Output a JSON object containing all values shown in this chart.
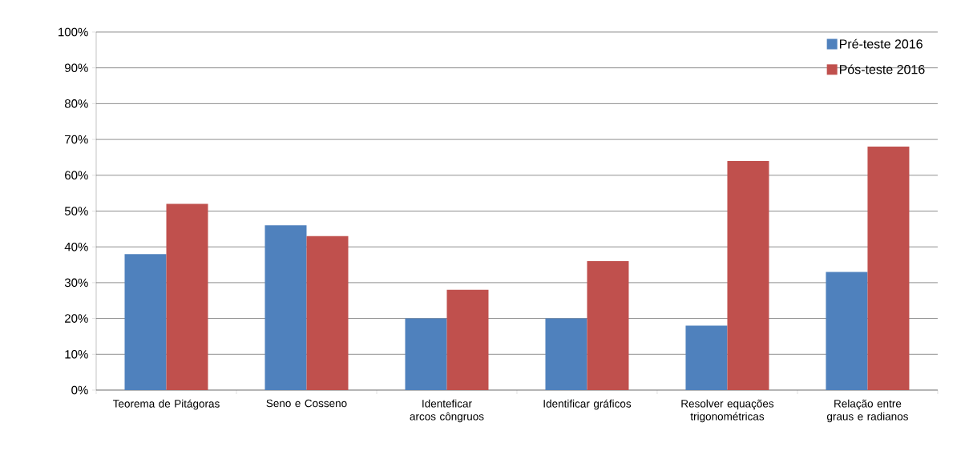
{
  "chart_data": {
    "type": "bar",
    "categories": [
      "Teorema de Pitágoras",
      "Seno e Cosseno",
      "Identeficar arcos côngruos",
      "Identificar gráficos",
      "Resolver equações trigonométricas",
      "Relação entre graus e radianos"
    ],
    "series": [
      {
        "name": "Pré-teste 2016",
        "color": "#4f81bd",
        "values": [
          38,
          46,
          20,
          20,
          18,
          33
        ]
      },
      {
        "name": "Pós-teste 2016",
        "color": "#c0504d",
        "values": [
          52,
          43,
          28,
          36,
          64,
          68
        ]
      }
    ],
    "ylim": [
      0,
      100
    ],
    "yticks": [
      {
        "value": 0,
        "label": "0%"
      },
      {
        "value": 10,
        "label": "10%"
      },
      {
        "value": 20,
        "label": "20%"
      },
      {
        "value": 30,
        "label": "30%"
      },
      {
        "value": 40,
        "label": "40%"
      },
      {
        "value": 50,
        "label": "50%"
      },
      {
        "value": 60,
        "label": "60%"
      },
      {
        "value": 70,
        "label": "70%"
      },
      {
        "value": 80,
        "label": "80%"
      },
      {
        "value": 90,
        "label": "90%"
      },
      {
        "value": 100,
        "label": "100%"
      }
    ],
    "grid": "y",
    "legend": "top right"
  }
}
